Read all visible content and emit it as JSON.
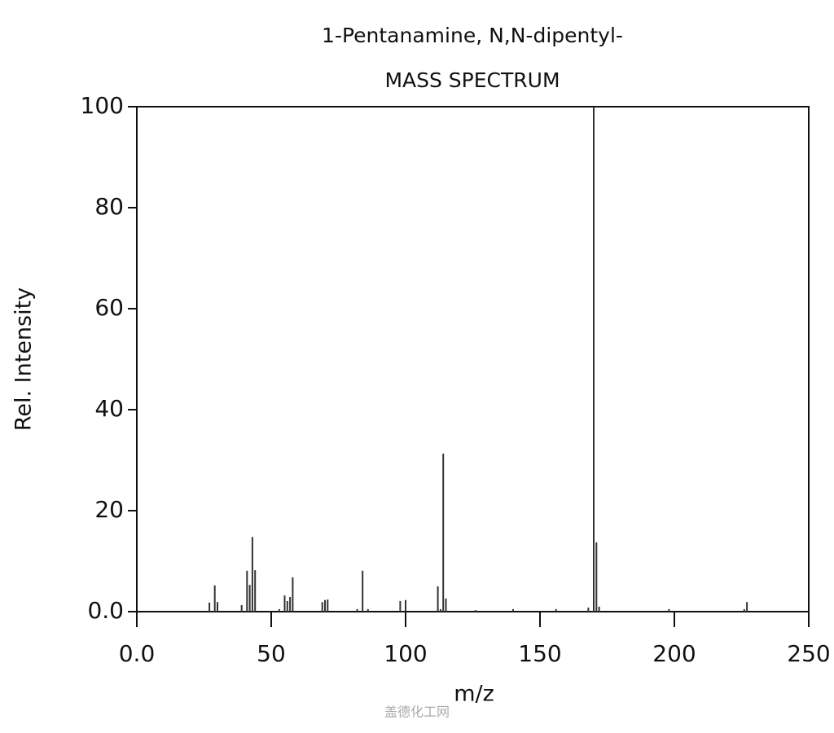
{
  "chart_data": {
    "type": "stem",
    "title": "1-Pentanamine, N,N-dipentyl-",
    "subtitle": "MASS SPECTRUM",
    "x_label": "m/z",
    "y_label": "Rel. Intensity",
    "watermark": "盖德化工网",
    "color": "#333333",
    "x": [
      27,
      29,
      30,
      39,
      41,
      42,
      43,
      44,
      53,
      55,
      56,
      57,
      58,
      69,
      70,
      71,
      82,
      84,
      86,
      98,
      100,
      112,
      113,
      114,
      115,
      126,
      140,
      156,
      168,
      170,
      171,
      172,
      198,
      226,
      227
    ],
    "values": [
      1.8,
      5.2,
      1.9,
      1.3,
      8.1,
      5.3,
      14.8,
      8.2,
      0.5,
      3.2,
      2.1,
      2.9,
      6.8,
      1.9,
      2.3,
      2.4,
      0.5,
      8.1,
      0.5,
      2.1,
      2.3,
      5.0,
      0.5,
      31.3,
      2.6,
      0.3,
      0.5,
      0.5,
      0.8,
      100,
      13.7,
      1.0,
      0.5,
      0.5,
      1.9
    ],
    "xlim": [
      0,
      250
    ],
    "ylim": [
      0,
      100
    ],
    "xticks": [
      {
        "value": 0,
        "label": "0.0"
      },
      50,
      100,
      150,
      200,
      250
    ],
    "yticks": [
      {
        "value": 0,
        "label": "0.0"
      },
      20,
      40,
      60,
      80,
      100
    ]
  }
}
